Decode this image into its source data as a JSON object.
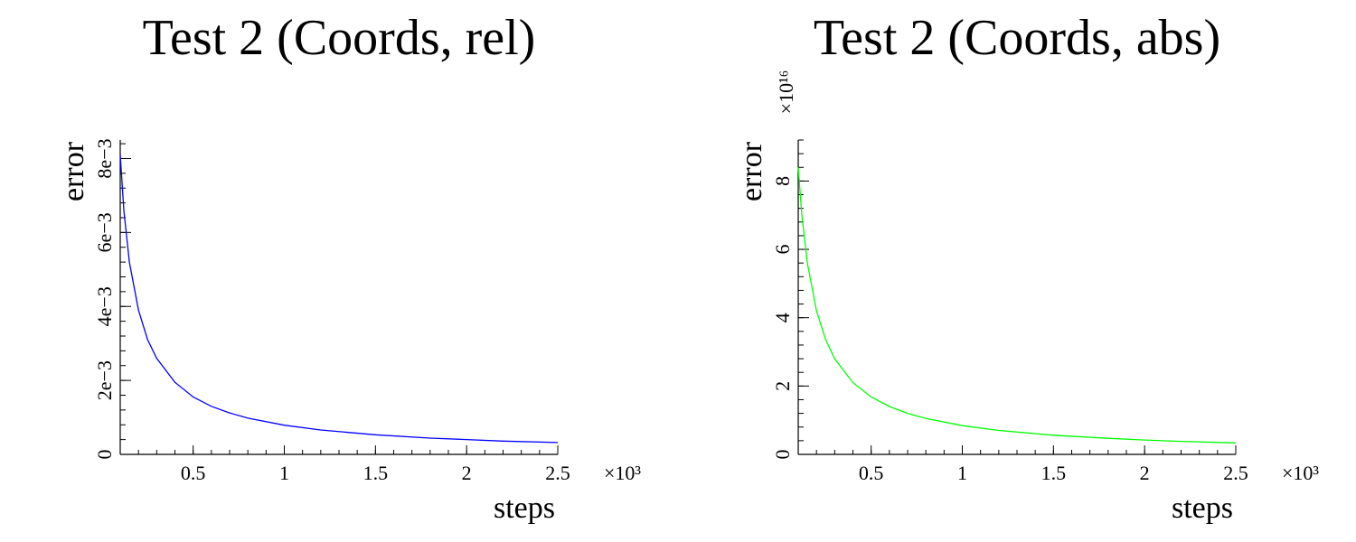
{
  "chart_data": [
    {
      "type": "line",
      "title": "Test 2 (Coords, rel)",
      "xlabel": "steps",
      "ylabel": "error",
      "xlim": [
        0.1,
        2.5
      ],
      "ylim": [
        0,
        0.0085
      ],
      "x_multiplier": "×10³",
      "y_multiplier": "",
      "x_ticks": [
        0.5,
        1,
        1.5,
        2,
        2.5
      ],
      "x_tick_labels": [
        "0.5",
        "1",
        "1.5",
        "2",
        "2.5"
      ],
      "y_ticks": [
        0,
        0.002,
        0.004,
        0.006,
        0.008
      ],
      "y_tick_labels": [
        "0",
        "2e−3",
        "4e−3",
        "6e−3",
        "8e−3"
      ],
      "grid": false,
      "series": [
        {
          "color": "#0000ff",
          "x": [
            0.1,
            0.12,
            0.15,
            0.2,
            0.25,
            0.3,
            0.4,
            0.5,
            0.6,
            0.7,
            0.8,
            1.0,
            1.2,
            1.5,
            1.8,
            2.0,
            2.2,
            2.5
          ],
          "y": [
            0.0081,
            0.0066,
            0.0052,
            0.0039,
            0.0031,
            0.0026,
            0.00195,
            0.00155,
            0.0013,
            0.00112,
            0.00098,
            0.00079,
            0.00066,
            0.00053,
            0.00044,
            0.0004,
            0.00036,
            0.00032
          ]
        }
      ]
    },
    {
      "type": "line",
      "title": "Test 2 (Coords, abs)",
      "xlabel": "steps",
      "ylabel": "error",
      "xlim": [
        0.1,
        2.5
      ],
      "ylim": [
        0,
        9.2
      ],
      "x_multiplier": "×10³",
      "y_multiplier": "×10¹⁶",
      "x_ticks": [
        0.5,
        1,
        1.5,
        2,
        2.5
      ],
      "x_tick_labels": [
        "0.5",
        "1",
        "1.5",
        "2",
        "2.5"
      ],
      "y_ticks": [
        0,
        2,
        4,
        6,
        8
      ],
      "y_tick_labels": [
        "0",
        "2",
        "4",
        "6",
        "8"
      ],
      "grid": false,
      "series": [
        {
          "color": "#00ff00",
          "x": [
            0.1,
            0.12,
            0.15,
            0.2,
            0.25,
            0.3,
            0.4,
            0.5,
            0.6,
            0.7,
            0.8,
            1.0,
            1.2,
            1.5,
            1.8,
            2.0,
            2.2,
            2.5
          ],
          "y": [
            8.4,
            7.0,
            5.6,
            4.2,
            3.36,
            2.8,
            2.1,
            1.68,
            1.4,
            1.2,
            1.05,
            0.84,
            0.7,
            0.56,
            0.47,
            0.42,
            0.38,
            0.336
          ]
        }
      ]
    }
  ]
}
